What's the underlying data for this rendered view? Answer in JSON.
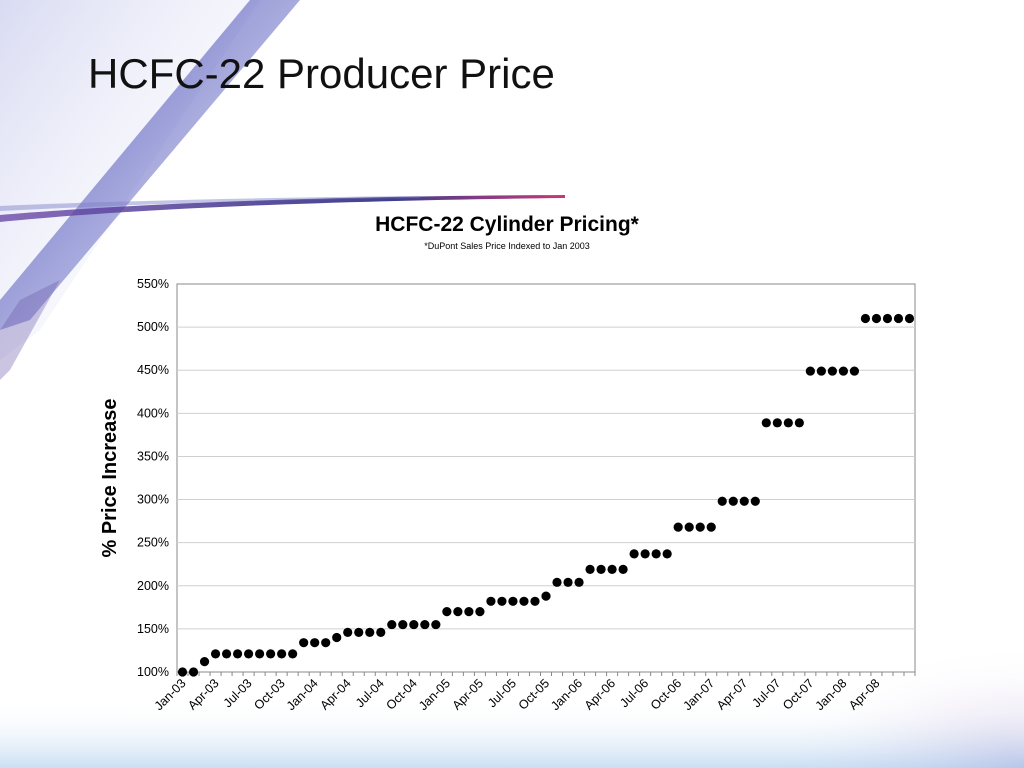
{
  "slide": {
    "title": "HCFC-22 Producer Price"
  },
  "chart_data": {
    "type": "scatter",
    "title": "HCFC-22 Cylinder Pricing*",
    "subtitle": "*DuPont Sales Price Indexed to Jan 2003",
    "xlabel": "",
    "ylabel": "% Price Increase",
    "ylim": [
      100,
      550
    ],
    "yticks": [
      "100%",
      "150%",
      "200%",
      "250%",
      "300%",
      "350%",
      "400%",
      "450%",
      "500%",
      "550%"
    ],
    "xtick_labels": [
      "Jan-03",
      "Apr-03",
      "Jul-03",
      "Oct-03",
      "Jan-04",
      "Apr-04",
      "Jul-04",
      "Oct-04",
      "Jan-05",
      "Apr-05",
      "Jul-05",
      "Oct-05",
      "Jan-06",
      "Apr-06",
      "Jul-06",
      "Oct-06",
      "Jan-07",
      "Apr-07",
      "Jul-07",
      "Oct-07",
      "Jan-08",
      "Apr-08"
    ],
    "grid": true,
    "marker_color": "#000000",
    "x": [
      "Jan-03",
      "Feb-03",
      "Mar-03",
      "Apr-03",
      "May-03",
      "Jun-03",
      "Jul-03",
      "Aug-03",
      "Sep-03",
      "Oct-03",
      "Nov-03",
      "Dec-03",
      "Jan-04",
      "Feb-04",
      "Mar-04",
      "Apr-04",
      "May-04",
      "Jun-04",
      "Jul-04",
      "Aug-04",
      "Sep-04",
      "Oct-04",
      "Nov-04",
      "Dec-04",
      "Jan-05",
      "Feb-05",
      "Mar-05",
      "Apr-05",
      "May-05",
      "Jun-05",
      "Jul-05",
      "Aug-05",
      "Sep-05",
      "Oct-05",
      "Nov-05",
      "Dec-05",
      "Jan-06",
      "Feb-06",
      "Mar-06",
      "Apr-06",
      "May-06",
      "Jun-06",
      "Jul-06",
      "Aug-06",
      "Sep-06",
      "Oct-06",
      "Nov-06",
      "Dec-06",
      "Jan-07",
      "Feb-07",
      "Mar-07",
      "Apr-07",
      "May-07",
      "Jun-07",
      "Jul-07",
      "Aug-07",
      "Sep-07",
      "Oct-07",
      "Nov-07",
      "Dec-07",
      "Jan-08",
      "Feb-08",
      "Mar-08",
      "Apr-08",
      "May-08",
      "Jun-08",
      "Jul-08"
    ],
    "values": [
      100,
      100,
      112,
      121,
      121,
      121,
      121,
      121,
      121,
      121,
      121,
      134,
      134,
      134,
      140,
      146,
      146,
      146,
      146,
      155,
      155,
      155,
      155,
      155,
      170,
      170,
      170,
      170,
      182,
      182,
      182,
      182,
      182,
      188,
      204,
      204,
      204,
      219,
      219,
      219,
      219,
      237,
      237,
      237,
      237,
      268,
      268,
      268,
      268,
      298,
      298,
      298,
      298,
      389,
      389,
      389,
      389,
      449,
      449,
      449,
      449,
      449,
      510,
      510,
      510,
      510,
      510
    ]
  }
}
